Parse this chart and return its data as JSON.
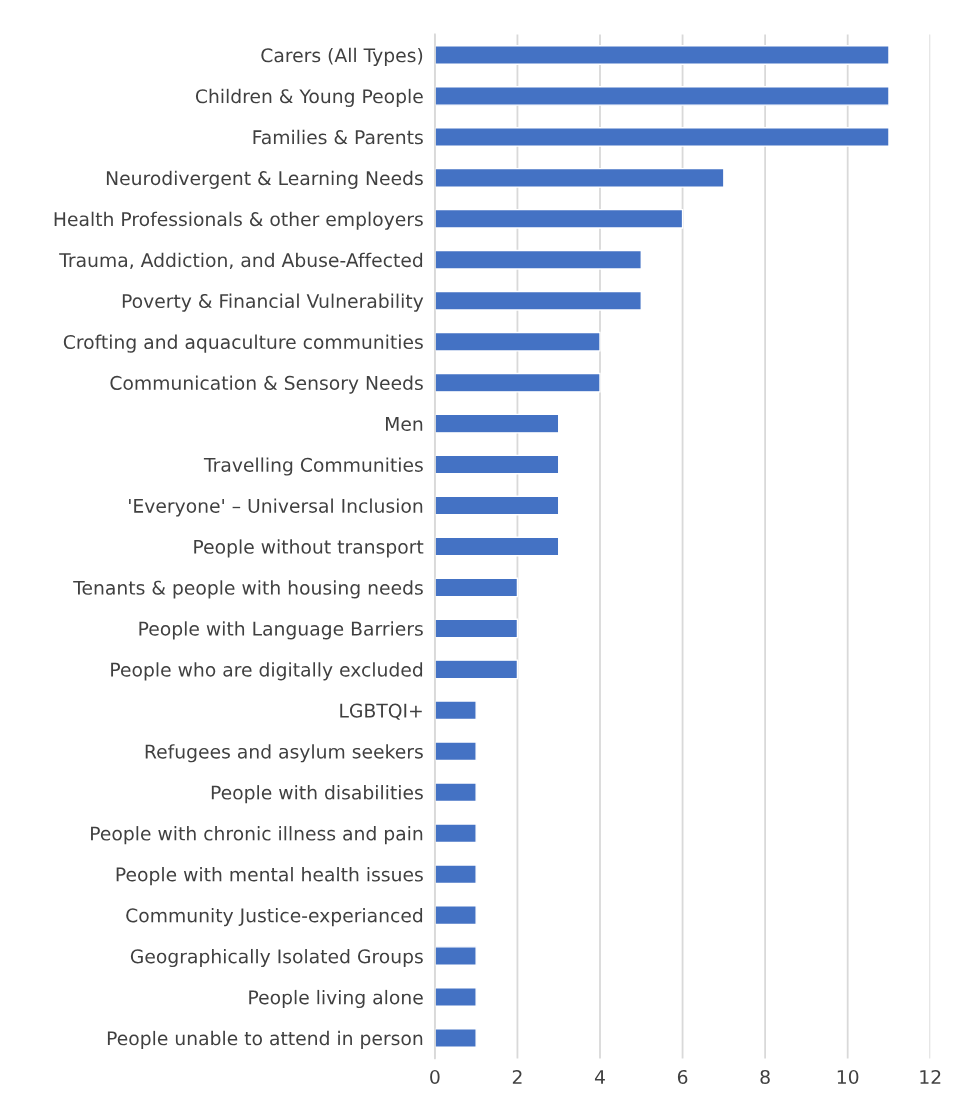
{
  "chart_data": {
    "type": "bar",
    "orientation": "horizontal",
    "color": "#4472c4",
    "grid": "x",
    "xlim": [
      0,
      12
    ],
    "xticks": [
      0,
      2,
      4,
      6,
      8,
      10,
      12
    ],
    "categories": [
      "Carers (All Types)",
      "Children & Young People",
      "Families & Parents",
      "Neurodivergent & Learning Needs",
      "Health Professionals & other employers",
      "Trauma, Addiction, and Abuse-Affected",
      "Poverty & Financial Vulnerability",
      "Crofting and aquaculture communities",
      "Communication & Sensory Needs",
      "Men",
      "Travelling Communities",
      "'Everyone' – Universal Inclusion",
      "People without transport",
      "Tenants & people with housing needs",
      "People with Language Barriers",
      "People who are digitally excluded",
      "LGBTQI+",
      "Refugees and asylum seekers",
      "People with disabilities",
      "People with chronic illness and pain",
      "People with mental health issues",
      "Community Justice-experianced",
      "Geographically Isolated Groups",
      "People living alone",
      "People unable to attend in person"
    ],
    "values": [
      11,
      11,
      11,
      7,
      6,
      5,
      5,
      4,
      4,
      3,
      3,
      3,
      3,
      2,
      2,
      2,
      1,
      1,
      1,
      1,
      1,
      1,
      1,
      1,
      1
    ]
  }
}
